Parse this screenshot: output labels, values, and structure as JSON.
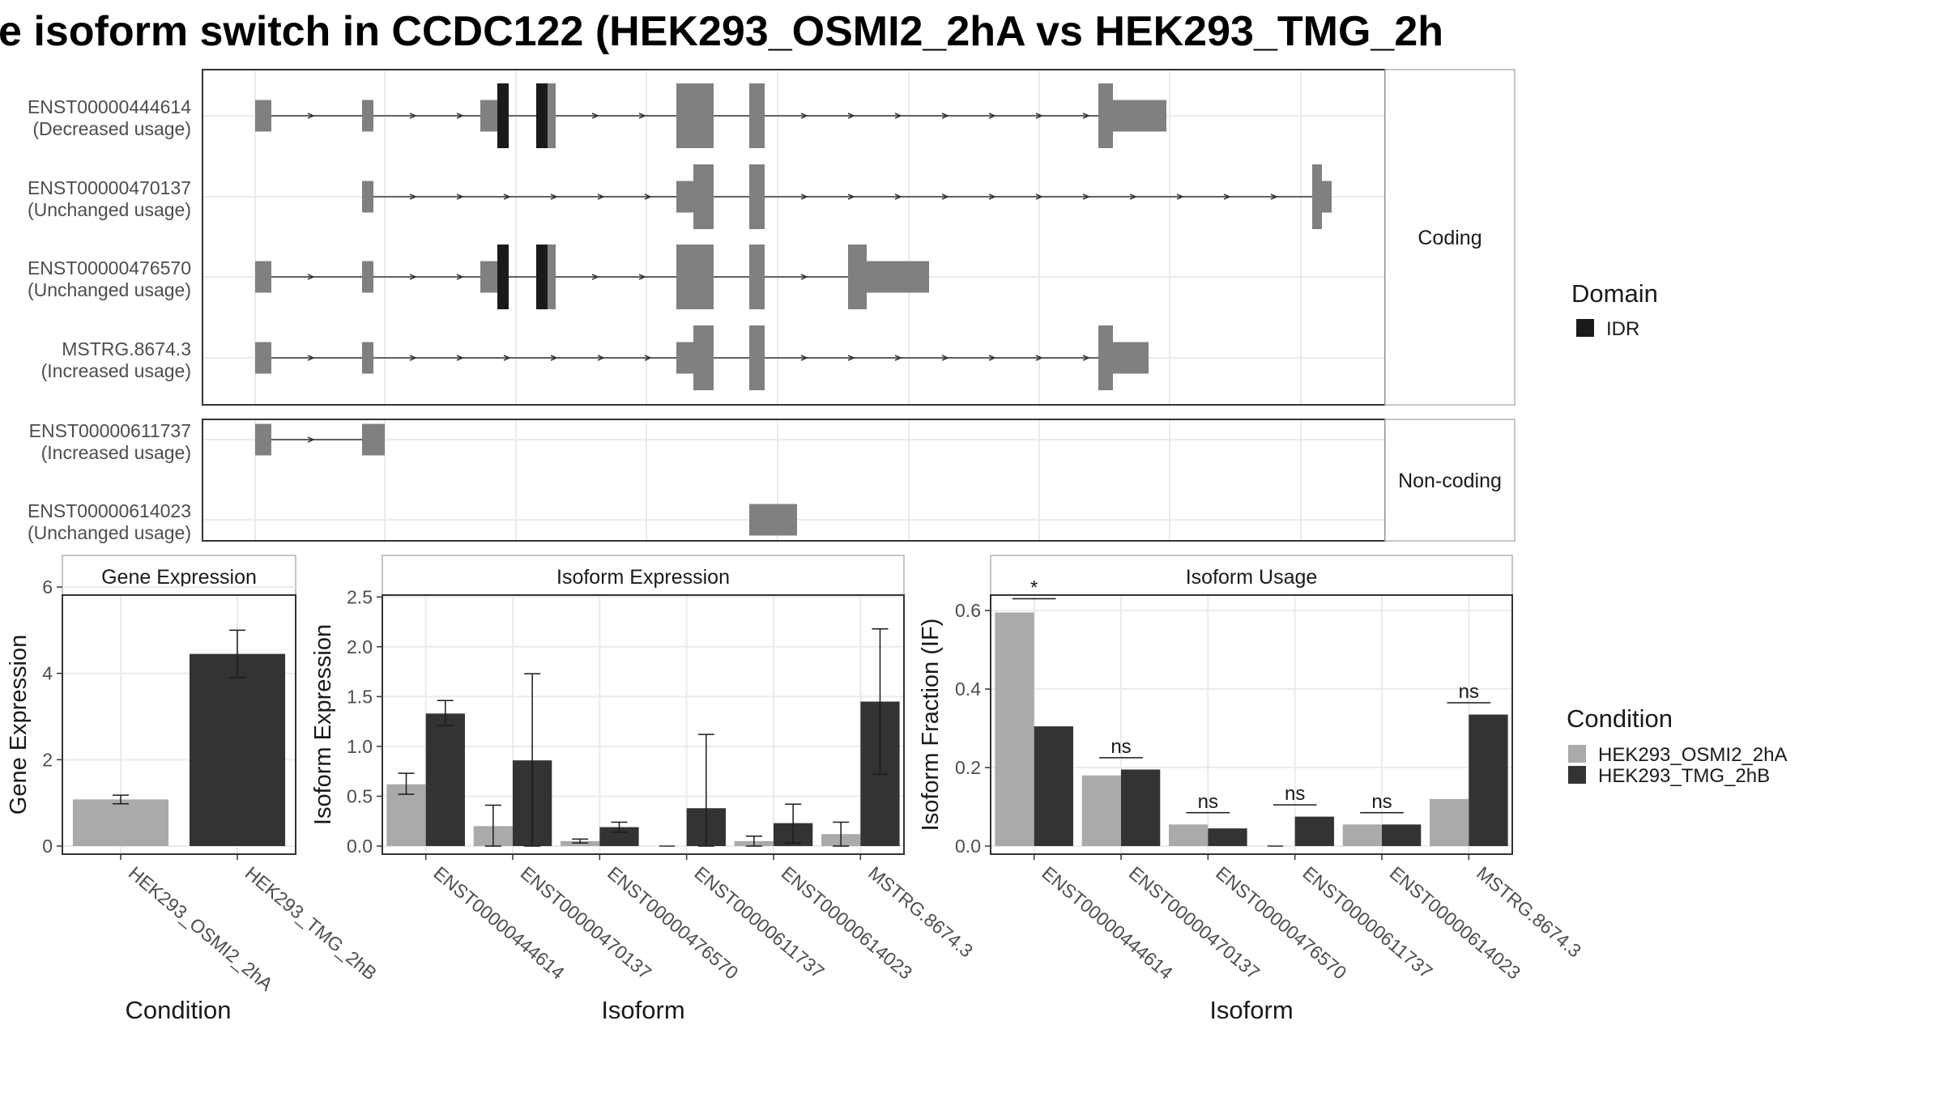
{
  "title": "e isoform switch in CCDC122 (HEK293_OSMI2_2hA vs HEK293_TMG_2h",
  "colors": {
    "exon": "#808080",
    "domain_idr": "#1a1a1a",
    "condition_a": "#aaaaaa",
    "condition_b": "#333333",
    "grid": "#ebebeb",
    "panel_border": "#333333",
    "strip_border": "#b3b3b3"
  },
  "transcripts": {
    "facets": [
      {
        "label": "Coding",
        "rows": [
          {
            "id": "ENST00000444614",
            "usage": "(Decreased usage)"
          },
          {
            "id": "ENST00000470137",
            "usage": "(Unchanged usage)"
          },
          {
            "id": "ENST00000476570",
            "usage": "(Unchanged usage)"
          },
          {
            "id": "MSTRG.8674.3",
            "usage": "(Increased usage)"
          }
        ]
      },
      {
        "label": "Non-coding",
        "rows": [
          {
            "id": "ENST00000611737",
            "usage": "(Increased usage)"
          },
          {
            "id": "ENST00000614023",
            "usage": "(Unchanged usage)"
          }
        ]
      }
    ],
    "legend": {
      "title": "Domain",
      "items": [
        {
          "label": "IDR",
          "color": "#1a1a1a"
        }
      ]
    }
  },
  "chart_data": [
    {
      "type": "bar",
      "title": "Gene Expression",
      "xlabel": "Condition",
      "ylabel": "Gene Expression",
      "categories": [
        "HEK293_OSMI2_2hA",
        "HEK293_TMG_2hB"
      ],
      "values": [
        1.08,
        4.45
      ],
      "error": [
        [
          0.98,
          1.18
        ],
        [
          3.9,
          5.0
        ]
      ],
      "ylim": [
        0,
        6
      ],
      "yticks": [
        0,
        2,
        4,
        6
      ]
    },
    {
      "type": "bar",
      "title": "Isoform Expression",
      "xlabel": "Isoform",
      "ylabel": "Isoform Expression",
      "categories": [
        "ENST00000444614",
        "ENST00000470137",
        "ENST00000476570",
        "ENST00000611737",
        "ENST00000614023",
        "MSTRG.8674.3"
      ],
      "series": [
        {
          "name": "HEK293_OSMI2_2hA",
          "values": [
            0.62,
            0.2,
            0.05,
            0.0,
            0.05,
            0.12
          ],
          "error": [
            [
              0.52,
              0.73
            ],
            [
              0.0,
              0.41
            ],
            [
              0.03,
              0.07
            ],
            [
              0.0,
              0.0
            ],
            [
              0.0,
              0.1
            ],
            [
              0.0,
              0.24
            ]
          ]
        },
        {
          "name": "HEK293_TMG_2hB",
          "values": [
            1.33,
            0.86,
            0.19,
            0.38,
            0.23,
            1.45
          ],
          "error": [
            [
              1.21,
              1.46
            ],
            [
              0.0,
              1.73
            ],
            [
              0.14,
              0.24
            ],
            [
              0.0,
              1.12
            ],
            [
              0.03,
              0.42
            ],
            [
              0.72,
              2.18
            ]
          ]
        }
      ],
      "ylim": [
        0,
        2.6
      ],
      "yticks": [
        0.0,
        0.5,
        1.0,
        1.5,
        2.0,
        2.5
      ]
    },
    {
      "type": "bar",
      "title": "Isoform Usage",
      "xlabel": "Isoform",
      "ylabel": "Isoform Fraction (IF)",
      "categories": [
        "ENST00000444614",
        "ENST00000470137",
        "ENST00000476570",
        "ENST00000611737",
        "ENST00000614023",
        "MSTRG.8674.3"
      ],
      "series": [
        {
          "name": "HEK293_OSMI2_2hA",
          "values": [
            0.595,
            0.18,
            0.055,
            0.0,
            0.055,
            0.12
          ]
        },
        {
          "name": "HEK293_TMG_2hB",
          "values": [
            0.305,
            0.195,
            0.045,
            0.075,
            0.055,
            0.335
          ]
        }
      ],
      "significance": [
        "*",
        "ns",
        "ns",
        "ns",
        "ns",
        "ns"
      ],
      "significance_y": [
        0.63,
        0.225,
        0.085,
        0.105,
        0.085,
        0.365
      ],
      "ylim": [
        0,
        0.66
      ],
      "yticks": [
        0.0,
        0.2,
        0.4,
        0.6
      ]
    }
  ],
  "condition_legend": {
    "title": "Condition",
    "items": [
      {
        "label": "HEK293_OSMI2_2hA",
        "color": "#aaaaaa"
      },
      {
        "label": "HEK293_TMG_2hB",
        "color": "#333333"
      }
    ]
  }
}
